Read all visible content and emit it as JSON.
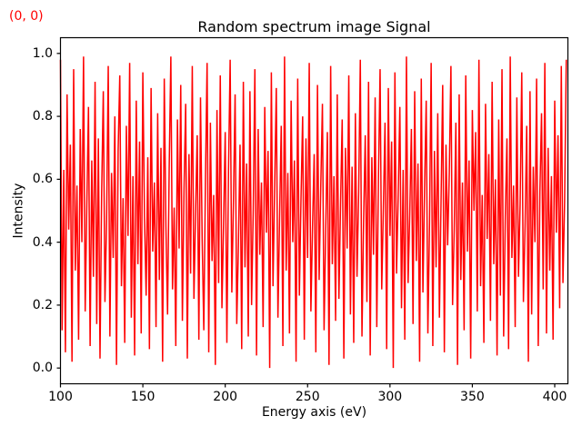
{
  "figure": {
    "coordinates_label": "(0, 0)",
    "coordinates_color": "#ff0000",
    "background": "#ffffff"
  },
  "chart_data": {
    "type": "line",
    "title": "Random spectrum image Signal",
    "xlabel": "Energy axis (eV)",
    "ylabel": "Intensity",
    "grid": false,
    "legend": "none",
    "axis_color": "#000000",
    "text_color": "#000000",
    "xlim": [
      100,
      408
    ],
    "ylim": [
      -0.05,
      1.05
    ],
    "x_ticks": [
      {
        "v": 100,
        "label": "100"
      },
      {
        "v": 150,
        "label": "150"
      },
      {
        "v": 200,
        "label": "200"
      },
      {
        "v": 250,
        "label": "250"
      },
      {
        "v": 300,
        "label": "300"
      },
      {
        "v": 350,
        "label": "350"
      },
      {
        "v": 400,
        "label": "400"
      }
    ],
    "y_ticks": [
      {
        "v": 0.0,
        "label": "0.0"
      },
      {
        "v": 0.2,
        "label": "0.2"
      },
      {
        "v": 0.4,
        "label": "0.4"
      },
      {
        "v": 0.6,
        "label": "0.6"
      },
      {
        "v": 0.8,
        "label": "0.8"
      },
      {
        "v": 1.0,
        "label": "1.0"
      }
    ],
    "series": [
      {
        "name": "Random spectrum image Signal",
        "color": "#ff0000",
        "line_width": 1.5,
        "x_start": 100,
        "x_step": 1,
        "values": [
          0.98,
          0.12,
          0.63,
          0.05,
          0.87,
          0.44,
          0.71,
          0.02,
          0.95,
          0.31,
          0.58,
          0.09,
          0.76,
          0.4,
          0.99,
          0.18,
          0.52,
          0.83,
          0.07,
          0.66,
          0.29,
          0.91,
          0.14,
          0.73,
          0.03,
          0.56,
          0.88,
          0.21,
          0.47,
          0.96,
          0.1,
          0.62,
          0.35,
          0.8,
          0.01,
          0.69,
          0.93,
          0.26,
          0.54,
          0.08,
          0.77,
          0.42,
          0.97,
          0.16,
          0.61,
          0.04,
          0.85,
          0.33,
          0.72,
          0.11,
          0.94,
          0.48,
          0.23,
          0.67,
          0.06,
          0.89,
          0.37,
          0.59,
          0.13,
          0.81,
          0.28,
          0.7,
          0.02,
          0.92,
          0.45,
          0.17,
          0.64,
          0.99,
          0.25,
          0.51,
          0.07,
          0.79,
          0.38,
          0.9,
          0.15,
          0.57,
          0.84,
          0.03,
          0.68,
          0.3,
          0.96,
          0.22,
          0.49,
          0.74,
          0.09,
          0.86,
          0.41,
          0.12,
          0.6,
          0.97,
          0.05,
          0.78,
          0.34,
          0.55,
          0.01,
          0.82,
          0.27,
          0.93,
          0.19,
          0.46,
          0.75,
          0.08,
          0.63,
          0.98,
          0.24,
          0.53,
          0.87,
          0.14,
          0.39,
          0.71,
          0.06,
          0.91,
          0.32,
          0.65,
          0.1,
          0.88,
          0.2,
          0.5,
          0.95,
          0.04,
          0.76,
          0.36,
          0.59,
          0.13,
          0.83,
          0.43,
          0.69,
          0.0,
          0.94,
          0.26,
          0.57,
          0.89,
          0.16,
          0.48,
          0.77,
          0.07,
          0.99,
          0.31,
          0.62,
          0.11,
          0.85,
          0.4,
          0.66,
          0.02,
          0.92,
          0.23,
          0.54,
          0.8,
          0.09,
          0.73,
          0.35,
          0.97,
          0.18,
          0.45,
          0.68,
          0.05,
          0.9,
          0.28,
          0.58,
          0.84,
          0.12,
          0.44,
          0.75,
          0.01,
          0.96,
          0.33,
          0.61,
          0.15,
          0.87,
          0.22,
          0.52,
          0.79,
          0.03,
          0.7,
          0.38,
          0.93,
          0.17,
          0.64,
          0.08,
          0.81,
          0.29,
          0.56,
          0.98,
          0.1,
          0.47,
          0.74,
          0.21,
          0.91,
          0.04,
          0.67,
          0.36,
          0.86,
          0.13,
          0.6,
          0.95,
          0.25,
          0.51,
          0.78,
          0.06,
          0.89,
          0.42,
          0.72,
          0.0,
          0.94,
          0.3,
          0.55,
          0.83,
          0.19,
          0.63,
          0.09,
          0.99,
          0.27,
          0.49,
          0.76,
          0.14,
          0.88,
          0.34,
          0.65,
          0.02,
          0.92,
          0.24,
          0.57,
          0.85,
          0.11,
          0.46,
          0.97,
          0.07,
          0.69,
          0.32,
          0.81,
          0.16,
          0.53,
          0.9,
          0.05,
          0.71,
          0.39,
          0.62,
          0.96,
          0.2,
          0.44,
          0.78,
          0.01,
          0.87,
          0.28,
          0.59,
          0.12,
          0.93,
          0.37,
          0.66,
          0.03,
          0.82,
          0.5,
          0.75,
          0.18,
          0.98,
          0.26,
          0.55,
          0.08,
          0.84,
          0.41,
          0.68,
          0.15,
          0.91,
          0.33,
          0.6,
          0.04,
          0.79,
          0.23,
          0.95,
          0.1,
          0.48,
          0.73,
          0.06,
          0.99,
          0.35,
          0.58,
          0.13,
          0.86,
          0.29,
          0.52,
          0.94,
          0.21,
          0.45,
          0.77,
          0.02,
          0.88,
          0.17,
          0.64,
          0.4,
          0.92,
          0.07,
          0.56,
          0.81,
          0.25,
          0.97,
          0.11,
          0.7,
          0.31,
          0.61,
          0.09,
          0.85,
          0.43,
          0.74,
          0.19,
          0.96,
          0.27,
          0.53,
          0.98
        ]
      }
    ]
  }
}
